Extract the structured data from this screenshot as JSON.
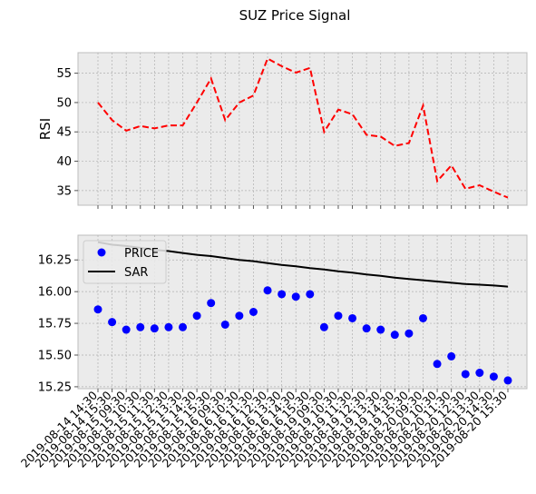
{
  "chart_data": {
    "type": "line",
    "title": "SUZ Price Signal",
    "colors": {
      "panel_background": "#ebebeb",
      "grid": "#b0b0b0",
      "rsi_line": "#ff0000",
      "price_marker": "#0000ff",
      "sar_line": "#000000"
    },
    "x": [
      "2019-08-14 14:30",
      "2019-08-14 15:30",
      "2019-08-15 09:30",
      "2019-08-15 10:30",
      "2019-08-15 11:30",
      "2019-08-15 12:30",
      "2019-08-15 13:30",
      "2019-08-15 14:30",
      "2019-08-15 15:30",
      "2019-08-16 09:30",
      "2019-08-16 10:30",
      "2019-08-16 11:30",
      "2019-08-16 12:30",
      "2019-08-16 13:30",
      "2019-08-16 14:30",
      "2019-08-16 15:30",
      "2019-08-19 09:30",
      "2019-08-19 10:30",
      "2019-08-19 11:30",
      "2019-08-19 12:30",
      "2019-08-19 13:30",
      "2019-08-19 14:30",
      "2019-08-19 15:30",
      "2019-08-20 09:30",
      "2019-08-20 10:30",
      "2019-08-20 11:30",
      "2019-08-20 12:30",
      "2019-08-20 13:30",
      "2019-08-20 14:30",
      "2019-08-20 15:30"
    ],
    "panels": [
      {
        "ylabel": "RSI",
        "ylim": [
          32.5,
          58.5
        ],
        "yticks": [
          35,
          40,
          45,
          50,
          55
        ],
        "ytick_labels": [
          "35",
          "40",
          "45",
          "50",
          "55"
        ],
        "grid": true,
        "legend": null,
        "series": [
          {
            "style": "dashed",
            "color": "#ff0000",
            "values": [
              50.0,
              47.0,
              45.2,
              46.0,
              45.6,
              46.1,
              46.1,
              50.0,
              54.1,
              47.0,
              50.0,
              51.2,
              57.5,
              56.2,
              55.1,
              55.9,
              45.0,
              48.8,
              48.0,
              44.5,
              44.2,
              42.6,
              43.1,
              49.5,
              36.6,
              39.3,
              35.3,
              35.9,
              34.8,
              33.8
            ]
          }
        ]
      },
      {
        "ylabel": "",
        "ylim": [
          15.235,
          16.445
        ],
        "yticks": [
          15.25,
          15.5,
          15.75,
          16.0,
          16.25
        ],
        "ytick_labels": [
          "15.25",
          "15.50",
          "15.75",
          "16.00",
          "16.25"
        ],
        "grid": true,
        "legend": "upper left",
        "series": [
          {
            "name": "PRICE",
            "style": "markers",
            "color": "#0000ff",
            "values": [
              15.86,
              15.76,
              15.7,
              15.72,
              15.71,
              15.72,
              15.72,
              15.81,
              15.91,
              15.74,
              15.81,
              15.84,
              16.01,
              15.98,
              15.96,
              15.98,
              15.72,
              15.81,
              15.79,
              15.71,
              15.7,
              15.66,
              15.67,
              15.79,
              15.43,
              15.49,
              15.35,
              15.36,
              15.33,
              15.3
            ]
          },
          {
            "name": "SAR",
            "style": "solid",
            "color": "#000000",
            "values": [
              16.39,
              16.37,
              16.36,
              16.345,
              16.33,
              16.32,
              16.305,
              16.29,
              16.28,
              16.265,
              16.25,
              16.24,
              16.225,
              16.21,
              16.2,
              16.185,
              16.175,
              16.16,
              16.15,
              16.135,
              16.125,
              16.11,
              16.1,
              16.09,
              16.08,
              16.07,
              16.06,
              16.055,
              16.048,
              16.04
            ]
          }
        ]
      }
    ]
  }
}
